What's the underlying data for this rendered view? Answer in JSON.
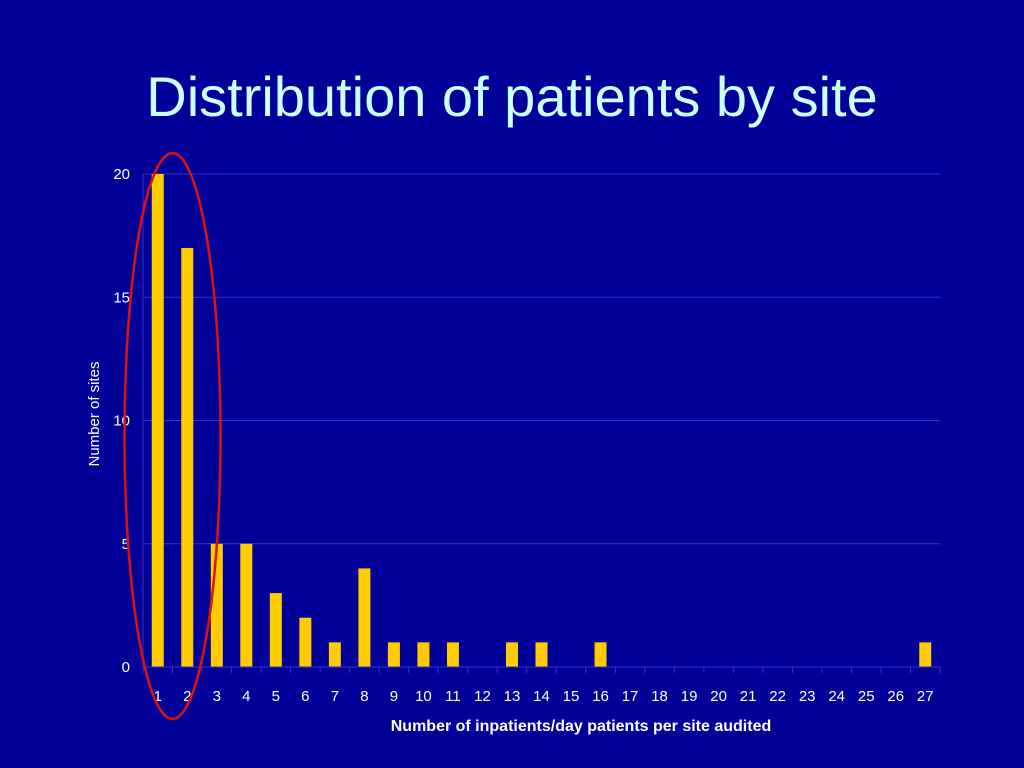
{
  "slide": {
    "title": "Distribution of patients by site"
  },
  "colors": {
    "background": "#000099",
    "title": "#ccffff",
    "bar": "#ffcc00",
    "gridline": "#3333cc",
    "highlight_ellipse": "#e01010",
    "text": "#ffffff"
  },
  "chart_data": {
    "type": "bar",
    "title": "",
    "xlabel": "Number of inpatients/day patients per site audited",
    "ylabel": "Number of sites",
    "categories": [
      "1",
      "2",
      "3",
      "4",
      "5",
      "6",
      "7",
      "8",
      "9",
      "10",
      "11",
      "12",
      "13",
      "14",
      "15",
      "16",
      "17",
      "18",
      "19",
      "20",
      "21",
      "22",
      "23",
      "24",
      "25",
      "26",
      "27"
    ],
    "values": [
      20,
      17,
      5,
      5,
      3,
      2,
      1,
      4,
      1,
      1,
      1,
      0,
      1,
      1,
      0,
      1,
      0,
      0,
      0,
      0,
      0,
      0,
      0,
      0,
      0,
      0,
      1
    ],
    "ylim": [
      0,
      20
    ],
    "yticks": [
      0,
      5,
      10,
      15,
      20
    ],
    "grid": true,
    "legend": "none",
    "annotation": {
      "shape": "ellipse",
      "encircles_categories": [
        "1",
        "2"
      ]
    }
  }
}
